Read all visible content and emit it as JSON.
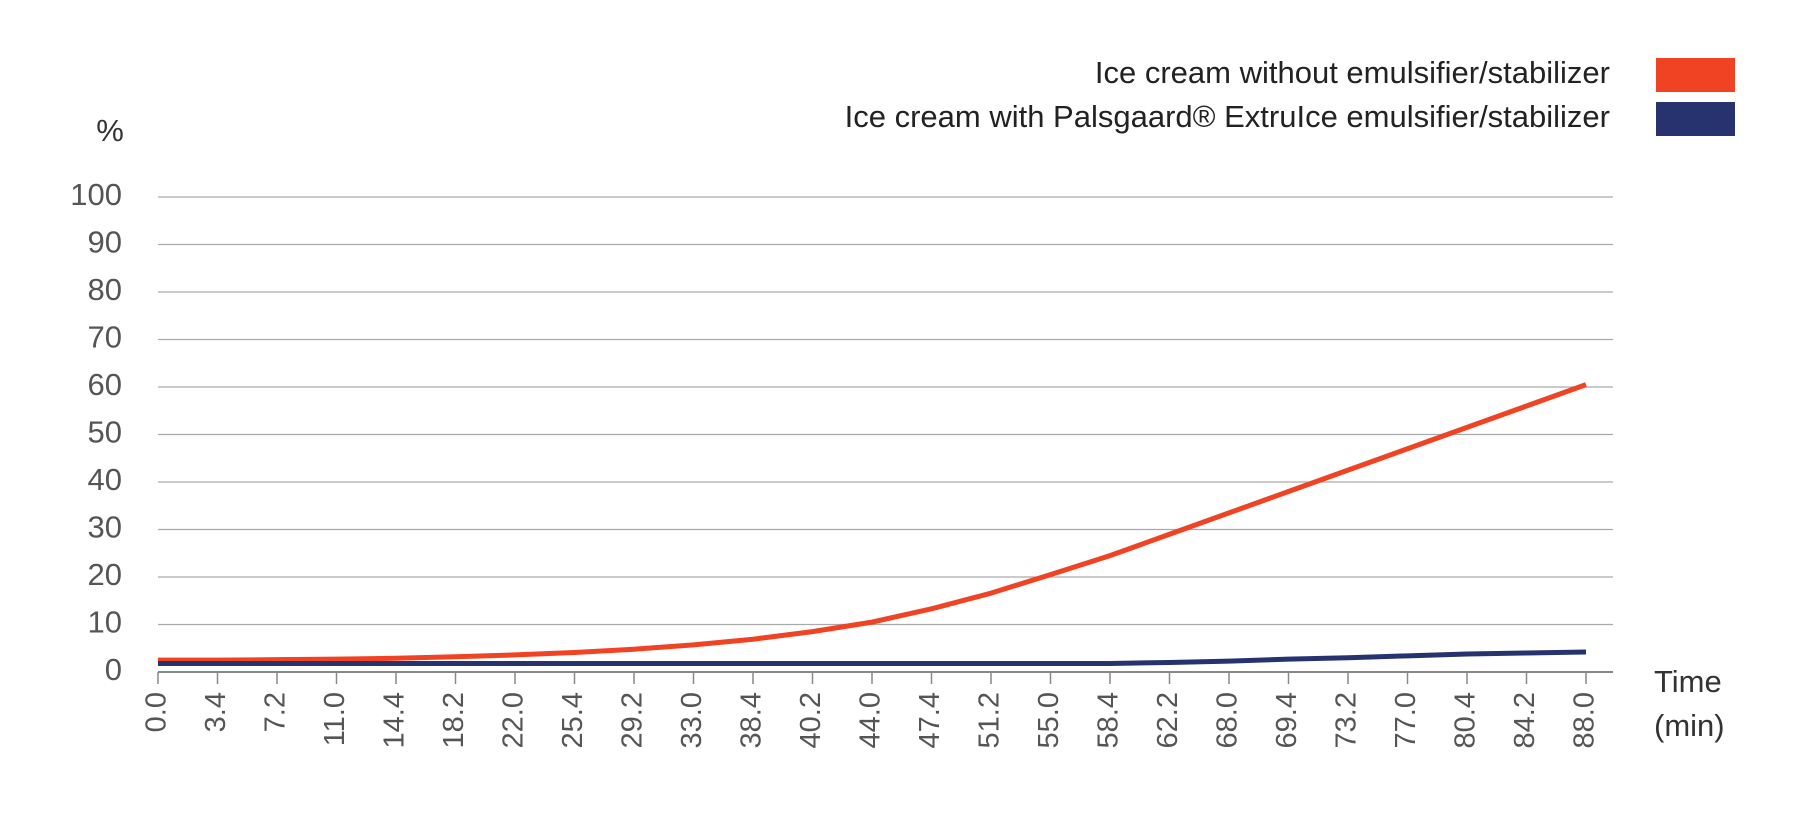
{
  "chart_data": {
    "type": "line",
    "y_label": "%",
    "x_label": "Time (min)",
    "categories": [
      "0.0",
      "3.4",
      "7.2",
      "11.0",
      "14.4",
      "18.2",
      "22.0",
      "25.4",
      "29.2",
      "33.0",
      "38.4",
      "40.2",
      "44.0",
      "47.4",
      "51.2",
      "55.0",
      "58.4",
      "62.2",
      "68.0",
      "69.4",
      "73.2",
      "77.0",
      "80.4",
      "84.2",
      "88.0"
    ],
    "series": [
      {
        "name": "Ice cream without emulsifier/stabilizer",
        "color": "#f04323",
        "values": [
          2.5,
          2.5,
          2.6,
          2.7,
          2.9,
          3.2,
          3.6,
          4.1,
          4.8,
          5.7,
          6.9,
          8.5,
          10.5,
          13.3,
          16.6,
          20.5,
          24.5,
          29,
          33.5,
          38,
          42.5,
          47,
          51.5,
          56,
          60.5
        ]
      },
      {
        "name": "Ice cream with Palsgaard® ExtruIce emulsifier/stabilizer",
        "color": "#27336e",
        "values": [
          1.8,
          1.8,
          1.8,
          1.8,
          1.8,
          1.8,
          1.8,
          1.8,
          1.8,
          1.8,
          1.8,
          1.8,
          1.8,
          1.8,
          1.8,
          1.8,
          1.8,
          2.0,
          2.3,
          2.7,
          3.0,
          3.4,
          3.8,
          4.0,
          4.2
        ]
      }
    ],
    "ylim": [
      0,
      100
    ],
    "yticks": [
      0,
      10,
      20,
      30,
      40,
      50,
      60,
      70,
      80,
      90,
      100
    ],
    "grid": true
  }
}
